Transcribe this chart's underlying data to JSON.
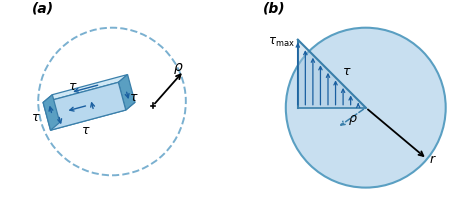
{
  "fig_width": 4.74,
  "fig_height": 2.05,
  "dpi": 100,
  "bg_color": "#ffffff",
  "label_a": "(a)",
  "label_b": "(b)",
  "blue_fill_light": "#b8d8ee",
  "blue_fill_mid": "#8bbdd9",
  "blue_fill_dark": "#5a9fc2",
  "blue_edge": "#3a7faa",
  "blue_top": "#d0e8f5",
  "circle_fill": "#c8dff0",
  "circle_edge": "#5a9fc2",
  "arrow_color": "#1a5fa0",
  "dashed_color": "#7ab0d0",
  "tau_fs": 9,
  "label_fs": 10
}
